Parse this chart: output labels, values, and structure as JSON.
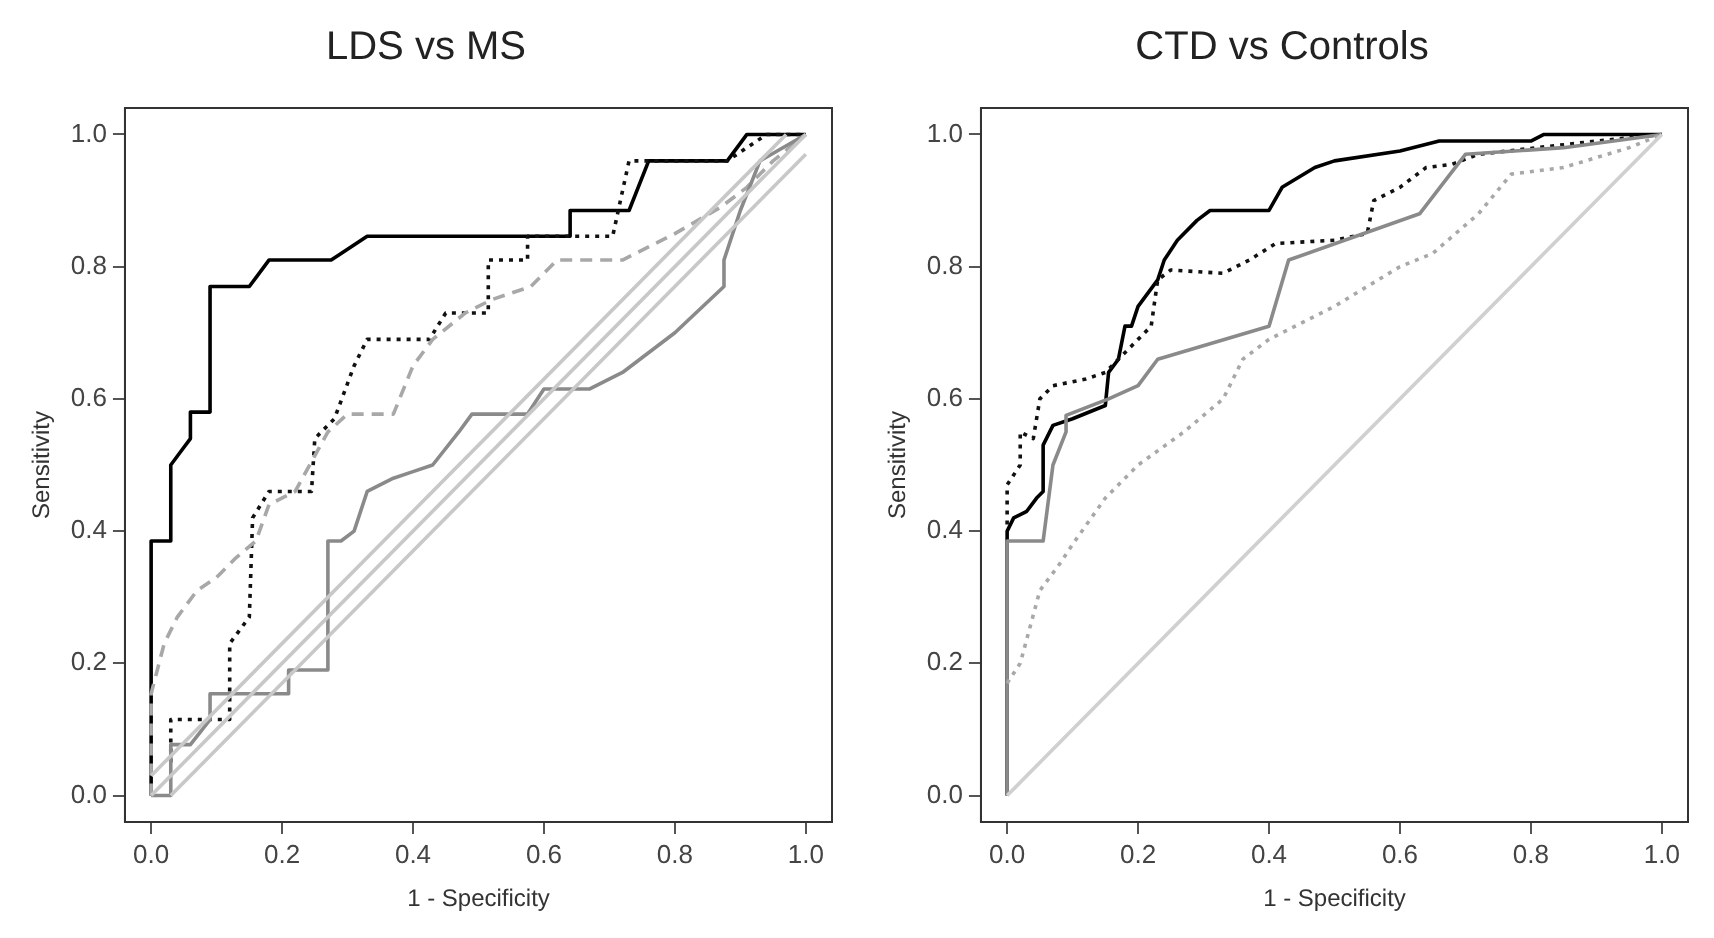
{
  "chart_data": [
    {
      "type": "line",
      "title": "LDS vs MS",
      "xlabel": "1 - Specificity",
      "ylabel": "Sensitivity",
      "xlim": [
        -0.04,
        1.04
      ],
      "ylim": [
        -0.04,
        1.04
      ],
      "grid": false,
      "xticks": [
        {
          "value": 0,
          "label": "0.0"
        },
        {
          "value": 0.2,
          "label": "0.2"
        },
        {
          "value": 0.4,
          "label": "0.4"
        },
        {
          "value": 0.6,
          "label": "0.6"
        },
        {
          "value": 0.8,
          "label": "0.8"
        },
        {
          "value": 1,
          "label": "1.0"
        }
      ],
      "yticks": [
        {
          "value": 0,
          "label": "0.0"
        },
        {
          "value": 0.2,
          "label": "0.2"
        },
        {
          "value": 0.4,
          "label": "0.4"
        },
        {
          "value": 0.6,
          "label": "0.6"
        },
        {
          "value": 0.8,
          "label": "0.8"
        },
        {
          "value": 1,
          "label": "1.0"
        }
      ],
      "series": [
        {
          "color": "#c8c8c8",
          "line_style": "solid",
          "x": [
            0,
            1
          ],
          "values": [
            0,
            1
          ]
        },
        {
          "color": "#c8c8c8",
          "line_style": "solid",
          "x": [
            0.03,
            1
          ],
          "values": [
            0,
            0.97
          ]
        },
        {
          "color": "#c8c8c8",
          "line_style": "solid",
          "x": [
            0,
            0.97
          ],
          "values": [
            0.03,
            1
          ]
        },
        {
          "color": "#8a8a8a",
          "line_style": "solid",
          "x": [
            0,
            0.03,
            0.03,
            0.06,
            0.09,
            0.09,
            0.21,
            0.21,
            0.27,
            0.27,
            0.29,
            0.31,
            0.33,
            0.37,
            0.4,
            0.43,
            0.47,
            0.49,
            0.575,
            0.6,
            0.67,
            0.72,
            0.8,
            0.875,
            0.875,
            0.9,
            0.93,
            1
          ],
          "values": [
            0,
            0,
            0.077,
            0.077,
            0.115,
            0.154,
            0.154,
            0.19,
            0.19,
            0.385,
            0.385,
            0.4,
            0.46,
            0.48,
            0.49,
            0.5,
            0.55,
            0.577,
            0.577,
            0.615,
            0.615,
            0.64,
            0.7,
            0.77,
            0.81,
            0.885,
            0.96,
            1
          ]
        },
        {
          "color": "#a8a8a8",
          "line_style": "dashed",
          "x": [
            0,
            0,
            0.02,
            0.04,
            0.07,
            0.1,
            0.13,
            0.16,
            0.18,
            0.22,
            0.27,
            0.3,
            0.37,
            0.4,
            0.43,
            0.48,
            0.52,
            0.58,
            0.62,
            0.72,
            0.8,
            0.87,
            0.91,
            0.95,
            1
          ],
          "values": [
            0,
            0.154,
            0.23,
            0.27,
            0.31,
            0.33,
            0.36,
            0.385,
            0.44,
            0.46,
            0.55,
            0.577,
            0.577,
            0.65,
            0.69,
            0.73,
            0.75,
            0.77,
            0.81,
            0.81,
            0.85,
            0.89,
            0.92,
            0.96,
            1
          ]
        },
        {
          "color": "#111111",
          "line_style": "dotted",
          "x": [
            0.03,
            0.03,
            0.12,
            0.12,
            0.15,
            0.155,
            0.18,
            0.245,
            0.25,
            0.28,
            0.31,
            0.33,
            0.425,
            0.45,
            0.515,
            0.515,
            0.575,
            0.575,
            0.705,
            0.73,
            0.88,
            0.91,
            0.94,
            1
          ],
          "values": [
            0.05,
            0.115,
            0.115,
            0.23,
            0.27,
            0.42,
            0.46,
            0.46,
            0.54,
            0.57,
            0.65,
            0.69,
            0.69,
            0.73,
            0.73,
            0.81,
            0.81,
            0.846,
            0.846,
            0.96,
            0.96,
            0.98,
            1,
            1
          ]
        },
        {
          "color": "#000000",
          "line_style": "solid",
          "x": [
            0,
            0,
            0.03,
            0.03,
            0.045,
            0.06,
            0.06,
            0.09,
            0.09,
            0.15,
            0.18,
            0.275,
            0.33,
            0.64,
            0.64,
            0.73,
            0.76,
            0.88,
            0.91,
            1
          ],
          "values": [
            0,
            0.385,
            0.385,
            0.5,
            0.52,
            0.54,
            0.58,
            0.58,
            0.77,
            0.77,
            0.81,
            0.81,
            0.846,
            0.846,
            0.885,
            0.885,
            0.96,
            0.96,
            1,
            1
          ]
        }
      ]
    },
    {
      "type": "line",
      "title": "CTD vs Controls",
      "xlabel": "1 - Specificity",
      "ylabel": "Sensitivity",
      "xlim": [
        -0.04,
        1.04
      ],
      "ylim": [
        -0.04,
        1.04
      ],
      "grid": false,
      "xticks": [
        {
          "value": 0,
          "label": "0.0"
        },
        {
          "value": 0.2,
          "label": "0.2"
        },
        {
          "value": 0.4,
          "label": "0.4"
        },
        {
          "value": 0.6,
          "label": "0.6"
        },
        {
          "value": 0.8,
          "label": "0.8"
        },
        {
          "value": 1,
          "label": "1.0"
        }
      ],
      "yticks": [
        {
          "value": 0,
          "label": "0.0"
        },
        {
          "value": 0.2,
          "label": "0.2"
        },
        {
          "value": 0.4,
          "label": "0.4"
        },
        {
          "value": 0.6,
          "label": "0.6"
        },
        {
          "value": 0.8,
          "label": "0.8"
        },
        {
          "value": 1,
          "label": "1.0"
        }
      ],
      "series": [
        {
          "color": "#d0d0d0",
          "line_style": "solid",
          "x": [
            0,
            1
          ],
          "values": [
            0,
            1
          ]
        },
        {
          "color": "#a8a8a8",
          "line_style": "dotted",
          "x": [
            0,
            0.02,
            0.05,
            0.08,
            0.1,
            0.15,
            0.2,
            0.27,
            0.33,
            0.36,
            0.4,
            0.5,
            0.6,
            0.65,
            0.72,
            0.77,
            0.85,
            0.95,
            1
          ],
          "values": [
            0.17,
            0.2,
            0.31,
            0.35,
            0.38,
            0.45,
            0.5,
            0.55,
            0.6,
            0.66,
            0.69,
            0.74,
            0.8,
            0.82,
            0.88,
            0.94,
            0.95,
            0.98,
            1
          ]
        },
        {
          "color": "#8a8a8a",
          "line_style": "solid",
          "x": [
            0,
            0,
            0.055,
            0.07,
            0.09,
            0.09,
            0.155,
            0.2,
            0.23,
            0.4,
            0.43,
            0.63,
            0.7,
            0.85,
            1
          ],
          "values": [
            0,
            0.385,
            0.385,
            0.5,
            0.55,
            0.575,
            0.6,
            0.62,
            0.66,
            0.71,
            0.81,
            0.88,
            0.97,
            0.98,
            1
          ]
        },
        {
          "color": "#111111",
          "line_style": "dotted",
          "x": [
            0,
            0,
            0.02,
            0.02,
            0.04,
            0.05,
            0.07,
            0.12,
            0.15,
            0.17,
            0.2,
            0.22,
            0.23,
            0.25,
            0.33,
            0.37,
            0.41,
            0.5,
            0.55,
            0.56,
            0.6,
            0.64,
            0.68,
            0.72,
            0.9,
            1
          ],
          "values": [
            0.41,
            0.47,
            0.5,
            0.55,
            0.54,
            0.6,
            0.62,
            0.63,
            0.64,
            0.66,
            0.69,
            0.71,
            0.78,
            0.795,
            0.79,
            0.81,
            0.835,
            0.84,
            0.85,
            0.9,
            0.92,
            0.95,
            0.955,
            0.97,
            0.99,
            1
          ]
        },
        {
          "color": "#000000",
          "line_style": "solid",
          "x": [
            0,
            0,
            0.01,
            0.03,
            0.045,
            0.055,
            0.055,
            0.07,
            0.1,
            0.15,
            0.155,
            0.17,
            0.18,
            0.19,
            0.2,
            0.23,
            0.24,
            0.26,
            0.29,
            0.31,
            0.4,
            0.42,
            0.47,
            0.5,
            0.6,
            0.66,
            0.8,
            0.82,
            1
          ],
          "values": [
            0,
            0.4,
            0.42,
            0.43,
            0.45,
            0.46,
            0.53,
            0.56,
            0.57,
            0.59,
            0.64,
            0.66,
            0.71,
            0.71,
            0.74,
            0.78,
            0.81,
            0.84,
            0.87,
            0.885,
            0.885,
            0.92,
            0.95,
            0.96,
            0.975,
            0.99,
            0.99,
            1,
            1
          ]
        }
      ]
    }
  ]
}
